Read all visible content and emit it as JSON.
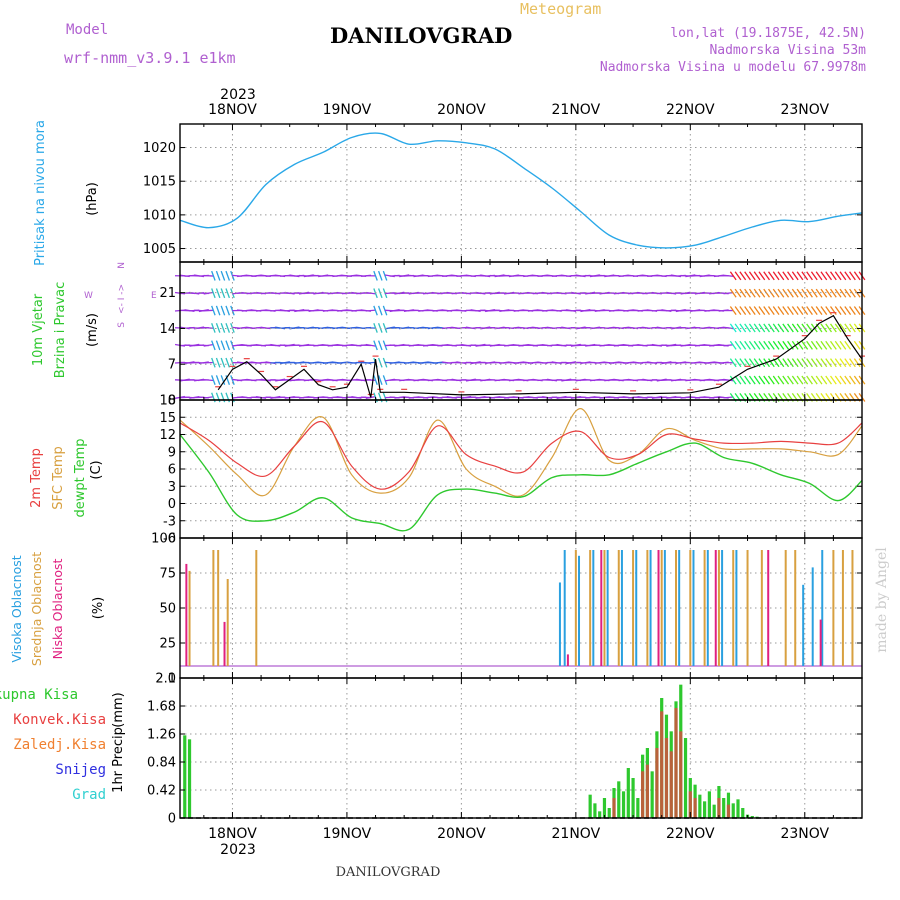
{
  "header": {
    "model_label": "Model",
    "model_name": "wrf-nmm_v3.9.1 e1km",
    "product": "Meteogram",
    "station": "DANILOVGRAD",
    "coords": "lon,lat (19.1875E, 42.5N)",
    "altitude": "Nadmorska Visina 53m",
    "model_altitude": "Nadmorska Visina u modelu 67.9978m"
  },
  "footer": {
    "station": "DANILOVGRAD",
    "credit": "made by Angel"
  },
  "colors": {
    "pressure": "#2aa8e8",
    "temp_2m": "#e84040",
    "sfc_temp": "#d8a040",
    "dewpoint": "#2ec82e",
    "cloud_high": "#2aa0e0",
    "cloud_mid": "#d8a040",
    "cloud_low": "#e02080",
    "wind_dir": "#9a30e0",
    "precip_total": "#2ec82e",
    "precip_conv": "#e84040",
    "precip_frz": "#f08030",
    "snow": "#3030e0",
    "hail": "#30d0d0"
  },
  "chart_data": {
    "type": "line",
    "time_axis": {
      "top_year": "2023",
      "bottom_year": "2023",
      "day_labels": [
        "18NOV",
        "19NOV",
        "20NOV",
        "21NOV",
        "22NOV",
        "23NOV"
      ],
      "start": "2023-11-17T13:00",
      "end": "2023-11-23T12:00",
      "step_hours": 1
    },
    "panels": [
      {
        "id": "pressure",
        "type": "line",
        "title": "Pritisak na nivou mora",
        "ylabel": "(hPa)",
        "ylim": [
          1003,
          1023.5
        ],
        "yticks": [
          1005,
          1010,
          1015,
          1020
        ],
        "series": [
          {
            "name": "Pritisak na nivou mora",
            "x": [
              "2023-11-17T13:00",
              "2023-11-17T19:00",
              "2023-11-18T01:00",
              "2023-11-18T07:00",
              "2023-11-18T13:00",
              "2023-11-18T19:00",
              "2023-11-19T01:00",
              "2023-11-19T07:00",
              "2023-11-19T13:00",
              "2023-11-19T19:00",
              "2023-11-20T01:00",
              "2023-11-20T07:00",
              "2023-11-20T13:00",
              "2023-11-20T19:00",
              "2023-11-21T01:00",
              "2023-11-21T07:00",
              "2023-11-21T13:00",
              "2023-11-21T19:00",
              "2023-11-22T01:00",
              "2023-11-22T07:00",
              "2023-11-22T13:00",
              "2023-11-22T19:00",
              "2023-11-23T01:00",
              "2023-11-23T07:00",
              "2023-11-23T12:00"
            ],
            "values": [
              1009.2,
              1008.1,
              1009.5,
              1014.5,
              1017.5,
              1019.3,
              1021.5,
              1022.1,
              1020.5,
              1021.0,
              1020.7,
              1019.8,
              1017.0,
              1014.0,
              1010.5,
              1007.0,
              1005.5,
              1005.1,
              1005.5,
              1006.8,
              1008.2,
              1009.2,
              1009.0,
              1009.8,
              1010.3
            ]
          }
        ]
      },
      {
        "id": "wind",
        "type": "line",
        "title": "10m Vjetar Brzina i Pravac",
        "ylabel": "(m/s)",
        "legend": {
          "n": "N",
          "w": "W",
          "e": "E",
          "mid": "<- I ->",
          "s": "S"
        },
        "ylim": [
          0,
          27
        ],
        "yticks": [
          0,
          7,
          14,
          21
        ],
        "series": [
          {
            "name": "speed",
            "x": [
              "2023-11-17T21:00",
              "2023-11-18T00:00",
              "2023-11-18T03:00",
              "2023-11-18T06:00",
              "2023-11-18T09:00",
              "2023-11-18T12:00",
              "2023-11-18T15:00",
              "2023-11-18T18:00",
              "2023-11-18T21:00",
              "2023-11-19T00:00",
              "2023-11-19T03:00",
              "2023-11-19T05:00",
              "2023-11-19T06:00",
              "2023-11-19T07:00",
              "2023-11-19T12:00",
              "2023-11-20T00:00",
              "2023-11-20T12:00",
              "2023-11-21T00:00",
              "2023-11-21T12:00",
              "2023-11-22T00:00",
              "2023-11-22T06:00",
              "2023-11-22T12:00",
              "2023-11-22T18:00",
              "2023-11-23T00:00",
              "2023-11-23T03:00",
              "2023-11-23T06:00",
              "2023-11-23T09:00",
              "2023-11-23T12:00"
            ],
            "values": [
              2,
              6,
              7.5,
              5,
              2,
              4,
              6,
              3,
              2,
              2.5,
              7,
              0.5,
              8,
              1.5,
              1.5,
              1,
              1.2,
              1.5,
              1.2,
              1.4,
              2.5,
              6,
              8,
              12,
              15,
              16.5,
              12,
              8
            ]
          }
        ]
      },
      {
        "id": "temperature",
        "type": "line",
        "title": "2m Temp / SFC Temp / dewpt Temp",
        "ylabel": "(C)",
        "ylim": [
          -6,
          18
        ],
        "yticks": [
          -6,
          -3,
          0,
          3,
          6,
          9,
          12,
          15,
          18
        ],
        "x": [
          "2023-11-17T13:00",
          "2023-11-17T19:00",
          "2023-11-18T01:00",
          "2023-11-18T07:00",
          "2023-11-18T13:00",
          "2023-11-18T19:00",
          "2023-11-19T01:00",
          "2023-11-19T07:00",
          "2023-11-19T13:00",
          "2023-11-19T19:00",
          "2023-11-20T01:00",
          "2023-11-20T07:00",
          "2023-11-20T13:00",
          "2023-11-20T19:00",
          "2023-11-21T01:00",
          "2023-11-21T07:00",
          "2023-11-21T13:00",
          "2023-11-21T19:00",
          "2023-11-22T01:00",
          "2023-11-22T07:00",
          "2023-11-22T13:00",
          "2023-11-22T19:00",
          "2023-11-23T01:00",
          "2023-11-23T07:00",
          "2023-11-23T12:00"
        ],
        "series": [
          {
            "name": "2m Temp",
            "values": [
              14,
              11,
              7,
              4.8,
              10,
              14.2,
              6.5,
              2.5,
              5.5,
              13.5,
              8.5,
              6.5,
              5.5,
              10.5,
              12.5,
              8.0,
              8.5,
              12.0,
              11.2,
              10.5,
              10.5,
              10.8,
              10.5,
              10.5,
              14
            ]
          },
          {
            "name": "SFC Temp",
            "values": [
              14.5,
              10,
              5,
              1.5,
              10,
              15,
              5,
              1.8,
              4.5,
              14.5,
              6,
              3,
              1.5,
              8,
              16.5,
              7.5,
              8.5,
              13,
              11,
              9.5,
              9.5,
              9.5,
              9.0,
              8.5,
              13.5
            ]
          },
          {
            "name": "dewpt Temp",
            "values": [
              12,
              5.5,
              -2,
              -3,
              -1.5,
              1,
              -2.5,
              -3.5,
              -4.5,
              1.5,
              2.5,
              1.8,
              1.2,
              4.5,
              5.0,
              5.0,
              7.0,
              9.0,
              10.5,
              8.0,
              7.0,
              5.0,
              3.5,
              0.5,
              4
            ]
          }
        ]
      },
      {
        "id": "clouds",
        "type": "bar",
        "title": "Visoka Oblacnost / Srednja Oblacnost / Niska Oblacnost",
        "ylabel": "(%)",
        "ylim": [
          0,
          100
        ],
        "yticks": [
          0,
          25,
          50,
          75,
          100
        ],
        "series": [
          {
            "name": "Visoka Oblacnost",
            "x": [
              "2023-11-20T21:00",
              "2023-11-20T22:00",
              "2023-11-21T01:00",
              "2023-11-21T04:00",
              "2023-11-21T07:00",
              "2023-11-21T10:00",
              "2023-11-21T13:00",
              "2023-11-21T16:00",
              "2023-11-21T19:00",
              "2023-11-21T22:00",
              "2023-11-22T01:00",
              "2023-11-22T04:00",
              "2023-11-22T07:00",
              "2023-11-22T10:00",
              "2023-11-23T00:00",
              "2023-11-23T02:00",
              "2023-11-23T04:00"
            ],
            "values": [
              72,
              100,
              95,
              100,
              100,
              100,
              100,
              100,
              100,
              100,
              100,
              100,
              100,
              100,
              70,
              85,
              100
            ]
          },
          {
            "name": "Srednja Oblacnost",
            "x": [
              "2023-11-17T15:00",
              "2023-11-17T20:00",
              "2023-11-17T21:00",
              "2023-11-17T23:00",
              "2023-11-18T05:00",
              "2023-11-21T00:00",
              "2023-11-21T03:00",
              "2023-11-21T06:00",
              "2023-11-21T09:00",
              "2023-11-21T12:00",
              "2023-11-21T15:00",
              "2023-11-21T18:00",
              "2023-11-21T21:00",
              "2023-11-22T00:00",
              "2023-11-22T03:00",
              "2023-11-22T06:00",
              "2023-11-22T09:00",
              "2023-11-22T12:00",
              "2023-11-22T15:00",
              "2023-11-22T20:00",
              "2023-11-22T22:00",
              "2023-11-23T06:00",
              "2023-11-23T08:00",
              "2023-11-23T10:00"
            ],
            "values": [
              82,
              100,
              100,
              75,
              100,
              100,
              100,
              100,
              100,
              100,
              100,
              100,
              100,
              100,
              100,
              100,
              100,
              100,
              100,
              100,
              100,
              100,
              100,
              100
            ]
          },
          {
            "name": "Niska Oblacnost",
            "x": [
              "2023-11-17T14:00",
              "2023-11-17T22:00",
              "2023-11-20T22:00",
              "2023-11-21T05:00",
              "2023-11-21T17:00",
              "2023-11-22T05:00",
              "2023-11-22T16:00",
              "2023-11-23T03:00"
            ],
            "values": [
              88,
              38,
              10,
              100,
              100,
              100,
              100,
              40
            ]
          }
        ]
      },
      {
        "id": "precip",
        "type": "bar",
        "title": "1hr Precip",
        "ylabel": "(mm)",
        "ylim": [
          0,
          2.1
        ],
        "yticks": [
          0,
          0.42,
          0.84,
          1.26,
          1.68,
          2.1
        ],
        "legend": [
          "Ukupna Kisa",
          "Konvek.Kisa",
          "Zaledj.Kisa",
          "Snijeg",
          "Grad"
        ],
        "series": [
          {
            "name": "Ukupna Kisa",
            "x": [
              "2023-11-17T14:00",
              "2023-11-17T15:00",
              "2023-11-21T03:00",
              "2023-11-21T04:00",
              "2023-11-21T05:00",
              "2023-11-21T06:00",
              "2023-11-21T07:00",
              "2023-11-21T08:00",
              "2023-11-21T09:00",
              "2023-11-21T10:00",
              "2023-11-21T11:00",
              "2023-11-21T12:00",
              "2023-11-21T13:00",
              "2023-11-21T14:00",
              "2023-11-21T15:00",
              "2023-11-21T16:00",
              "2023-11-21T17:00",
              "2023-11-21T18:00",
              "2023-11-21T19:00",
              "2023-11-21T20:00",
              "2023-11-21T21:00",
              "2023-11-21T22:00",
              "2023-11-21T23:00",
              "2023-11-22T00:00",
              "2023-11-22T01:00",
              "2023-11-22T02:00",
              "2023-11-22T03:00",
              "2023-11-22T04:00",
              "2023-11-22T05:00",
              "2023-11-22T06:00",
              "2023-11-22T07:00",
              "2023-11-22T08:00",
              "2023-11-22T09:00",
              "2023-11-22T10:00",
              "2023-11-22T11:00",
              "2023-11-22T12:00",
              "2023-11-22T13:00",
              "2023-11-22T14:00"
            ],
            "values": [
              1.24,
              1.18,
              0.35,
              0.22,
              0.1,
              0.3,
              0.15,
              0.45,
              0.55,
              0.4,
              0.75,
              0.6,
              0.3,
              0.95,
              1.05,
              0.7,
              1.3,
              1.8,
              1.55,
              1.3,
              1.75,
              2.0,
              1.2,
              0.6,
              0.5,
              0.35,
              0.25,
              0.4,
              0.2,
              0.48,
              0.3,
              0.38,
              0.22,
              0.28,
              0.15,
              0.05,
              0.03,
              0.02
            ]
          },
          {
            "name": "Konvek.Kisa",
            "x": [
              "2023-11-21T08:00",
              "2023-11-21T14:00",
              "2023-11-21T15:00",
              "2023-11-21T17:00",
              "2023-11-21T18:00",
              "2023-11-21T19:00",
              "2023-11-21T20:00",
              "2023-11-21T21:00",
              "2023-11-21T22:00",
              "2023-11-22T00:00",
              "2023-11-22T01:00",
              "2023-11-22T06:00",
              "2023-11-22T08:00"
            ],
            "values": [
              0.3,
              0.7,
              0.8,
              1.05,
              1.6,
              1.2,
              1.0,
              1.65,
              1.3,
              0.4,
              0.3,
              0.3,
              0.2
            ]
          }
        ]
      }
    ]
  }
}
